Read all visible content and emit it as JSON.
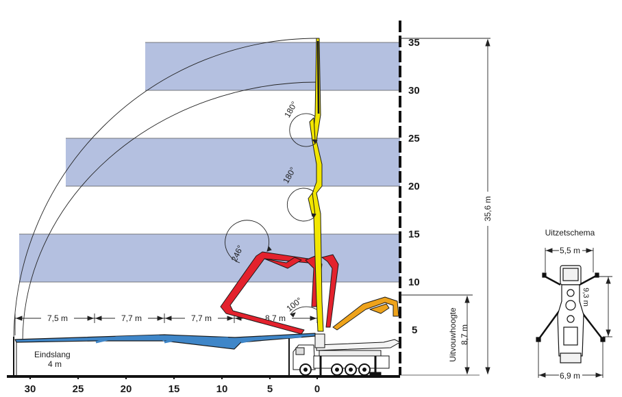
{
  "y_axis": {
    "ticks": [
      "35",
      "30",
      "25",
      "20",
      "15",
      "10",
      "5"
    ]
  },
  "x_axis": {
    "ticks": [
      "30",
      "25",
      "20",
      "15",
      "10",
      "5",
      "0"
    ]
  },
  "angles": {
    "top": "180°",
    "middle": "180°",
    "red": "246°",
    "base": "100°"
  },
  "horizontal_dims": [
    "7,5 m",
    "7,7 m",
    "7,7 m",
    "8,7 m"
  ],
  "total_height": "35,6 m",
  "unfold_height": {
    "label": "Uitvouwhoogte",
    "value": "8,7 m"
  },
  "end_hose": {
    "label": "Eindslang",
    "value": "4 m"
  },
  "outrigger": {
    "title": "Uitzetschema",
    "width_front": "5,5 m",
    "width_rear": "6,9 m",
    "length": "9,3 m"
  },
  "colors": {
    "band": "#b4c0e0",
    "yellow": "#f2e600",
    "red": "#e3222d",
    "blue": "#3f86c8",
    "orange": "#eea31b",
    "outline": "#1a1a1a"
  }
}
